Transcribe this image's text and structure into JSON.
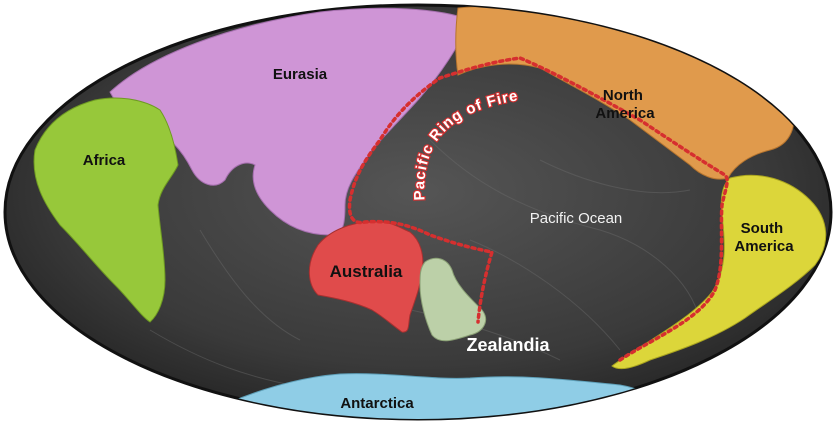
{
  "map": {
    "labels": {
      "eurasia": "Eurasia",
      "africa": "Africa",
      "north_america": [
        "North",
        "America"
      ],
      "south_america": [
        "South",
        "America"
      ],
      "australia": "Australia",
      "zealandia": "Zealandia",
      "antarctica": "Antarctica",
      "pacific_ocean": "Pacific Ocean",
      "ring_of_fire": "Pacific Ring of Fire"
    },
    "colors": {
      "ocean": "#3c3c3c",
      "eurasia": "#cf95d6",
      "africa": "#97c83a",
      "north_america": "#e09a4c",
      "south_america": "#dcd63a",
      "australia": "#e04b4b",
      "zealandia": "#bcd0a8",
      "antarctica": "#8fcde6",
      "ring_of_fire": "#d62f2f"
    }
  }
}
